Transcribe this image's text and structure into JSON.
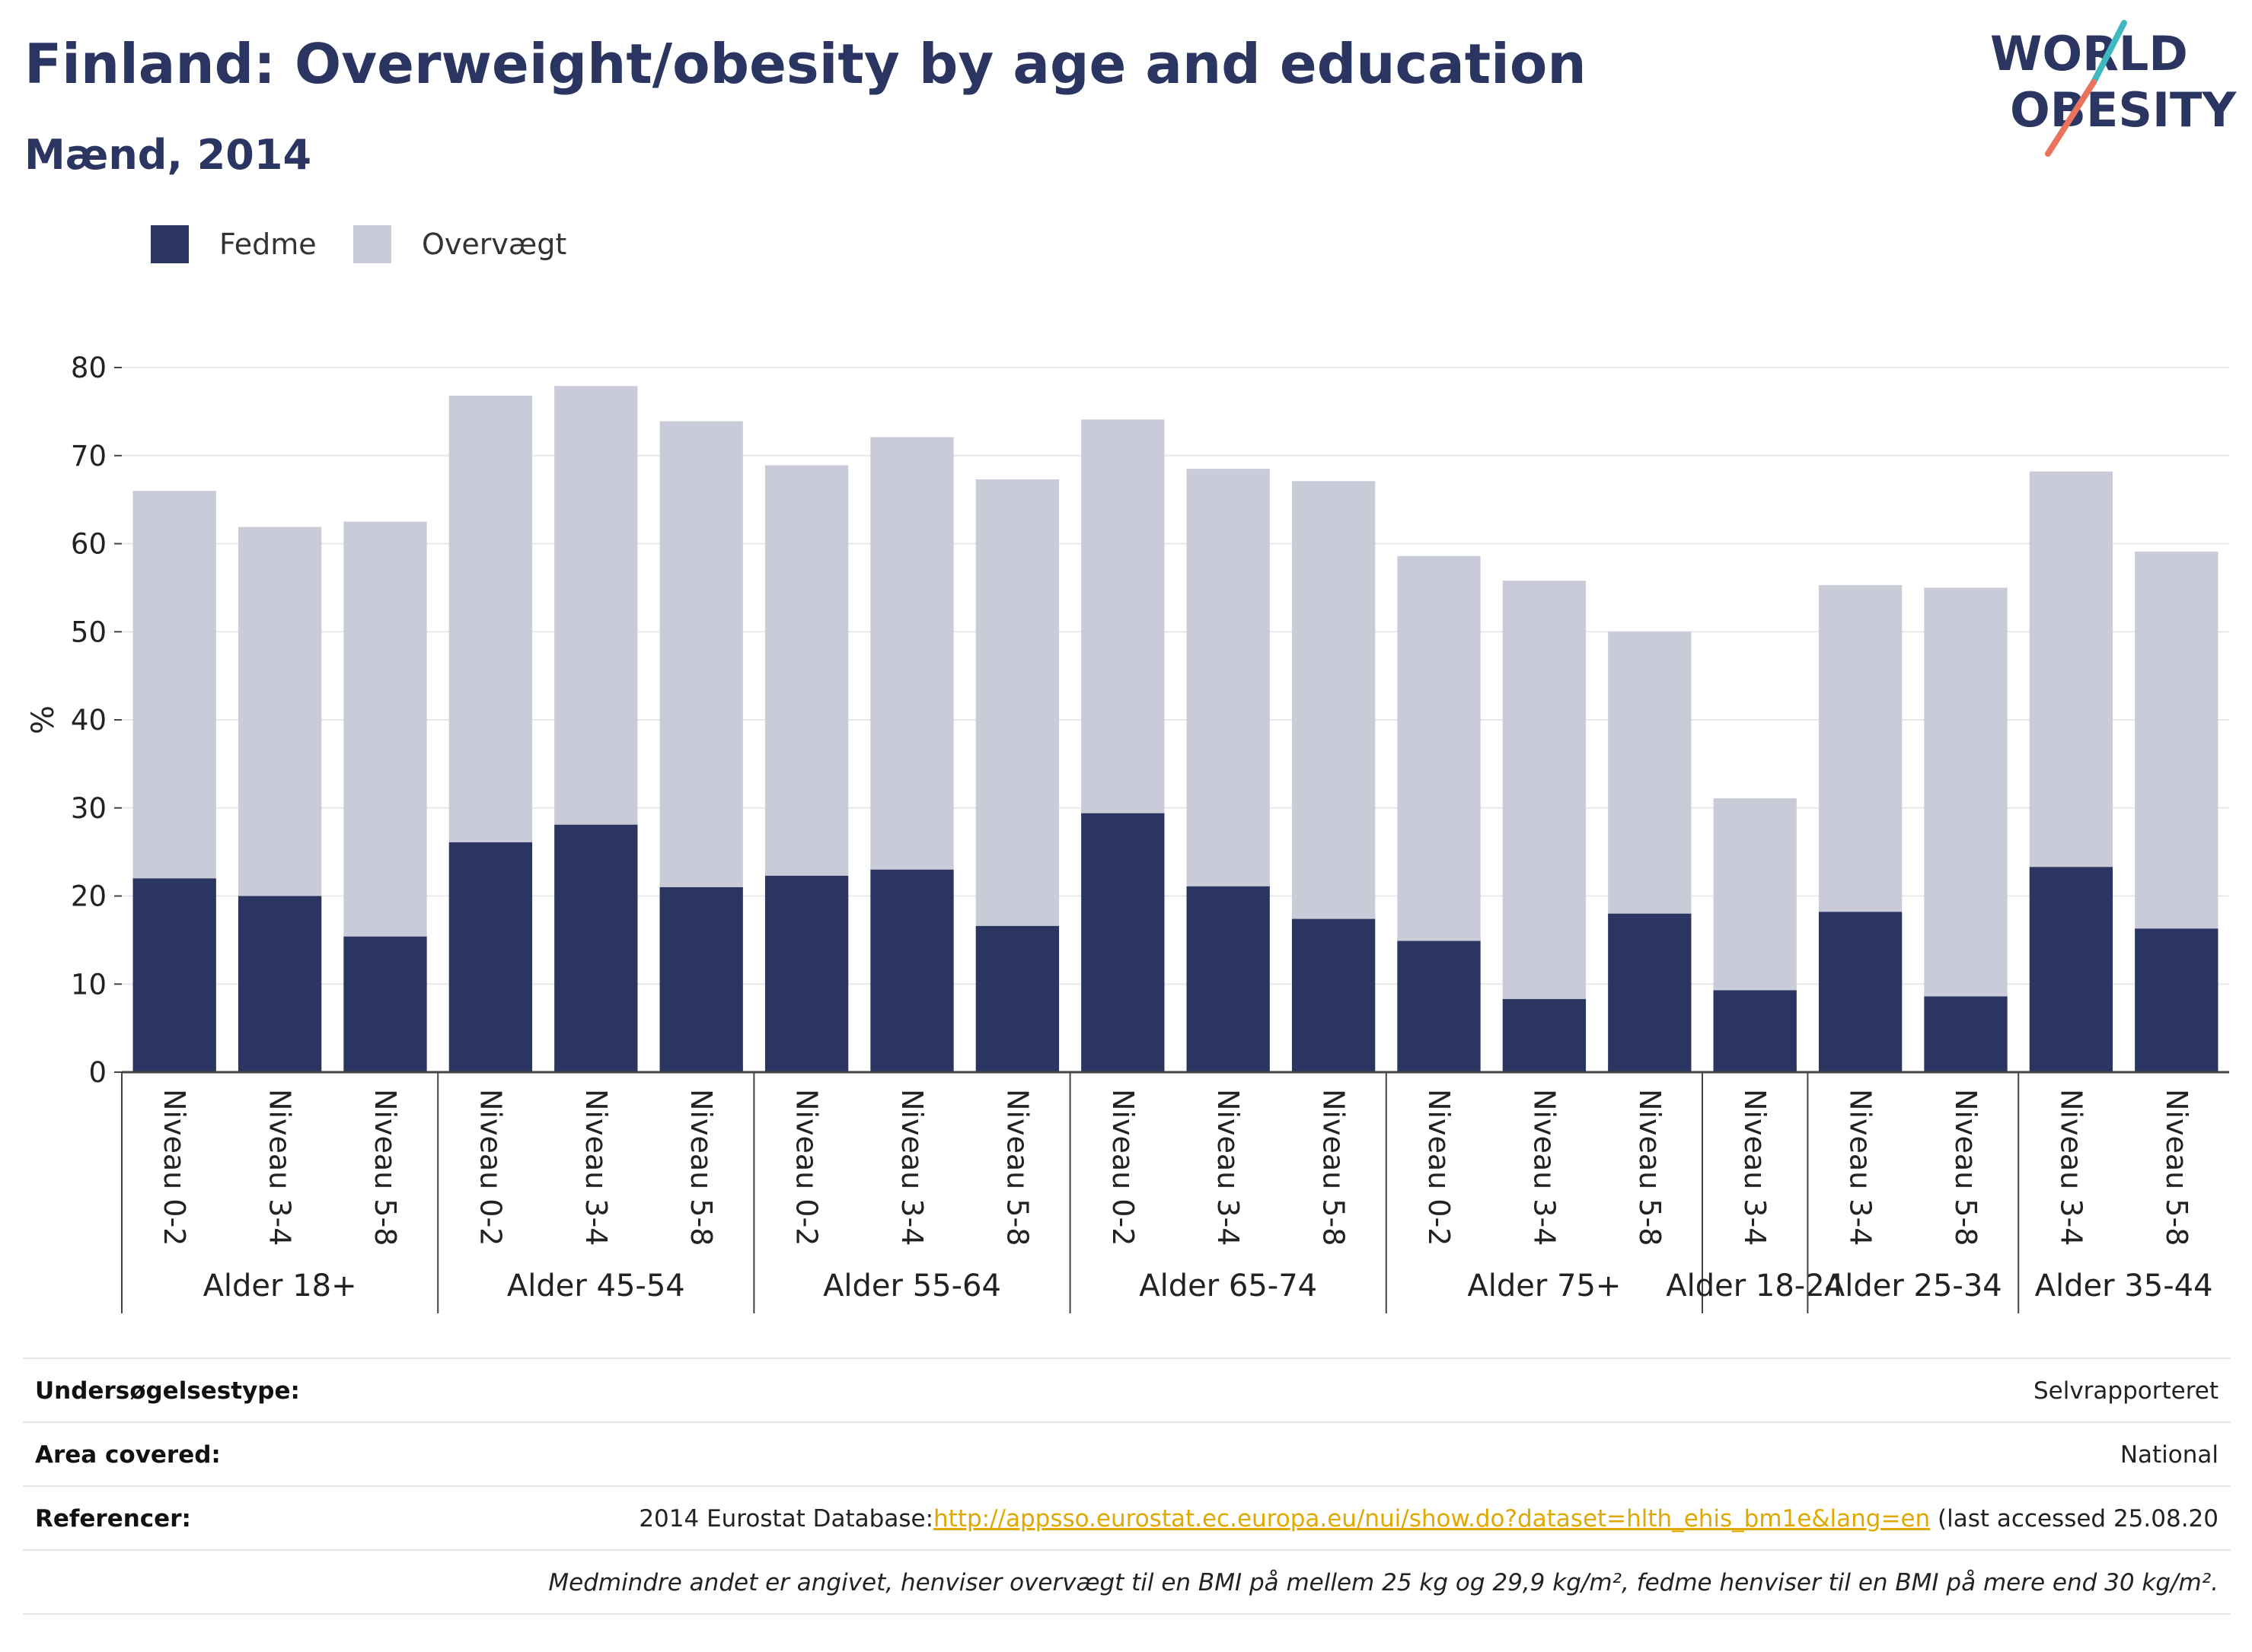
{
  "header": {
    "title": "Finland: Overweight/obesity by age and education",
    "subtitle": "Mænd, 2014",
    "logo_line1": "WORLD",
    "logo_line2": "OBESITY"
  },
  "colors": {
    "obesity": "#2b3561",
    "overweight": "#c9cbd8",
    "title": "#2b3561",
    "link": "#e0a800",
    "logo_teal": "#3fb8c0",
    "logo_coral": "#e9735c"
  },
  "chart_data": {
    "type": "bar",
    "stacked": true,
    "ylabel": "%",
    "ylim": [
      0,
      80
    ],
    "yticks": [
      0,
      10,
      20,
      30,
      40,
      50,
      60,
      70,
      80
    ],
    "grid": true,
    "legend_position": "top-left",
    "groups": [
      {
        "label": "Alder 18+",
        "categories": [
          "Niveau 0-2",
          "Niveau 3-4",
          "Niveau 5-8"
        ]
      },
      {
        "label": "Alder 45-54",
        "categories": [
          "Niveau 0-2",
          "Niveau 3-4",
          "Niveau 5-8"
        ]
      },
      {
        "label": "Alder 55-64",
        "categories": [
          "Niveau 0-2",
          "Niveau 3-4",
          "Niveau 5-8"
        ]
      },
      {
        "label": "Alder 65-74",
        "categories": [
          "Niveau 0-2",
          "Niveau 3-4",
          "Niveau 5-8"
        ]
      },
      {
        "label": "Alder 75+",
        "categories": [
          "Niveau 0-2",
          "Niveau 3-4",
          "Niveau 5-8"
        ]
      },
      {
        "label": "Alder 18-24",
        "categories": [
          "Niveau 3-4"
        ]
      },
      {
        "label": "Alder 25-34",
        "categories": [
          "Niveau 3-4",
          "Niveau 5-8"
        ]
      },
      {
        "label": "Alder 35-44",
        "categories": [
          "Niveau 3-4",
          "Niveau 5-8"
        ]
      }
    ],
    "series": [
      {
        "name": "Fedme",
        "values": [
          22,
          20,
          15.4,
          26.1,
          28.1,
          21,
          22.3,
          23,
          16.6,
          29.4,
          21.1,
          17.4,
          14.9,
          8.3,
          18,
          9.3,
          18.2,
          8.6,
          23.3,
          16.3
        ]
      },
      {
        "name": "Overvægt",
        "values": [
          44,
          41.9,
          47.1,
          50.7,
          49.8,
          52.9,
          46.6,
          49.1,
          50.7,
          44.7,
          47.4,
          49.7,
          43.7,
          47.5,
          32,
          21.8,
          37.1,
          46.4,
          44.9,
          42.8
        ]
      }
    ]
  },
  "info": [
    {
      "key": "Undersøgelsestype:",
      "value": "Selvrapporteret"
    },
    {
      "key": "Area covered:",
      "value": "National"
    },
    {
      "key": "Referencer:",
      "value_prefix": "2014 Eurostat Database:",
      "link": "http://appsso.eurostat.ec.europa.eu/nui/show.do?dataset=hlth_ehis_bm1e&lang=en",
      "value_suffix": " (last accessed 25.08.20"
    }
  ],
  "footnote": "Medmindre andet er angivet, henviser overvægt til en BMI på mellem 25 kg og 29,9 kg/m², fedme henviser til en BMI på mere end 30 kg/m²."
}
